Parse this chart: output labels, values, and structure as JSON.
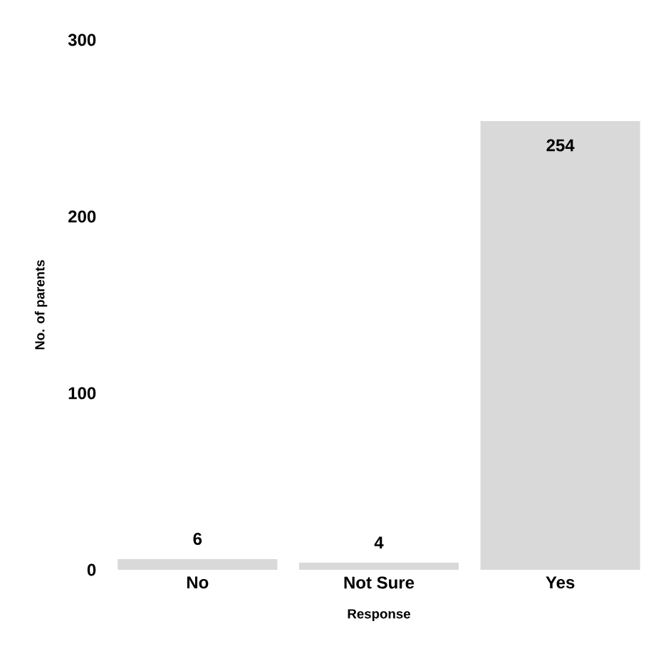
{
  "chart_data": {
    "type": "bar",
    "xlabel": "Response",
    "ylabel": "No. of parents",
    "categories": [
      "No",
      "Not Sure",
      "Yes"
    ],
    "values": [
      6,
      4,
      254
    ],
    "color": "#d9d9d9",
    "ylim": [
      0,
      300
    ],
    "yticks": [
      0,
      100,
      200,
      300
    ],
    "grid": false,
    "data_labels": true
  }
}
